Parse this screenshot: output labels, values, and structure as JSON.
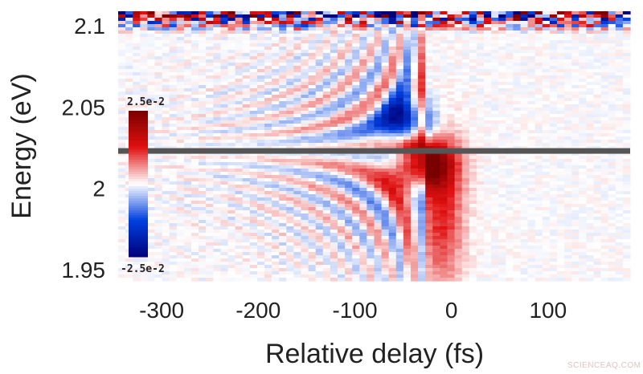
{
  "chart_data": {
    "type": "heatmap",
    "title": "",
    "xlabel": "Relative delay (fs)",
    "ylabel": "Energy (eV)",
    "x_ticks": [
      {
        "value": -300,
        "label": "-300"
      },
      {
        "value": -200,
        "label": "-200"
      },
      {
        "value": -100,
        "label": "-100"
      },
      {
        "value": 0,
        "label": "0"
      },
      {
        "value": 100,
        "label": "100"
      }
    ],
    "y_ticks": [
      {
        "value": 2.1,
        "label": "2.1"
      },
      {
        "value": 2.05,
        "label": "2.05"
      },
      {
        "value": 2.0,
        "label": "2"
      },
      {
        "value": 1.95,
        "label": "1.95"
      }
    ],
    "xlim": [
      -345,
      185
    ],
    "ylim": [
      1.943,
      2.109
    ],
    "colorbar": {
      "max_label": "2.5e-2",
      "min_label": "-2.5e-2",
      "range": [
        -0.025,
        0.025
      ],
      "colormap": [
        "#00007a",
        "#0040e0",
        "#ffffff",
        "#e01010",
        "#7a0000"
      ]
    },
    "reference_line": {
      "energy": 2.023,
      "color": "#555555"
    },
    "features": {
      "time_zero": -30,
      "strong_positive_peak": {
        "delay": -30,
        "energy": 2.015
      },
      "negative_lobe_above_line": {
        "delay": -45,
        "energy": 2.04
      },
      "fringe_period_fs": 55
    }
  },
  "watermark": "SCIENCEAQ.COM"
}
